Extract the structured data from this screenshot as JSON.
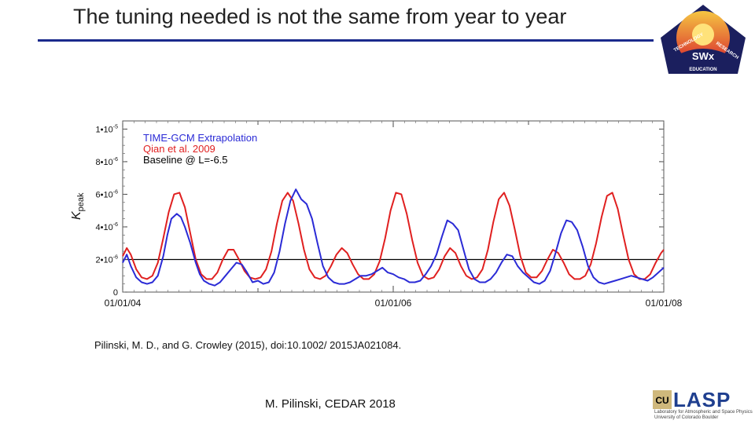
{
  "slide": {
    "title": "The tuning needed is not the same from year to year",
    "citation": "Pilinski, M. D., and G. Crowley (2015), doi:10.1002/ 2015JA021084.",
    "footer": "M. Pilinski, CEDAR 2018"
  },
  "badge": {
    "center_text": "SWx",
    "ring_words": [
      "TECHNOLOGY",
      "RESEARCH",
      "EDUCATION"
    ],
    "colors": {
      "ring": "#1b1f5e",
      "sun": "#f5a623",
      "sky": "#d8262d"
    }
  },
  "logos": {
    "lasp_text": "LASP",
    "lasp_sub": "Laboratory for Atmospheric and Space Physics University of Colorado Boulder",
    "cu_text": "CU"
  },
  "chart_data": {
    "type": "line",
    "ylabel": "K",
    "ylabel_subscript": "peak",
    "ylim": [
      0,
      1.05e-05
    ],
    "yticks": [
      {
        "value": 0,
        "mantissa": "0",
        "exp": ""
      },
      {
        "value": 2e-06,
        "mantissa": "2•10",
        "exp": "-6"
      },
      {
        "value": 4e-06,
        "mantissa": "4•10",
        "exp": "-6"
      },
      {
        "value": 6e-06,
        "mantissa": "6•10",
        "exp": "-6"
      },
      {
        "value": 8e-06,
        "mantissa": "8•10",
        "exp": "-6"
      },
      {
        "value": 1e-05,
        "mantissa": "1•10",
        "exp": "-5"
      }
    ],
    "xlim": [
      0,
      4
    ],
    "xunit": "years since 01/01/04",
    "xticks": [
      {
        "value": 0,
        "label": "01/01/04"
      },
      {
        "value": 2,
        "label": "01/01/06"
      },
      {
        "value": 4,
        "label": "01/01/08"
      }
    ],
    "xminor": [
      1,
      3
    ],
    "baseline": {
      "value": 2e-06,
      "color": "#000000"
    },
    "legend": [
      {
        "label": "TIME-GCM Extrapolation",
        "color": "#2b2bd6"
      },
      {
        "label": "Qian et al. 2009",
        "color": "#e02020"
      },
      {
        "label": "Baseline @ L=-6.5",
        "color": "#000000"
      }
    ],
    "series": [
      {
        "name": "TIME-GCM Extrapolation",
        "color": "#2b2bd6",
        "x": [
          0,
          0.03,
          0.06,
          0.1,
          0.14,
          0.18,
          0.22,
          0.26,
          0.3,
          0.33,
          0.36,
          0.4,
          0.43,
          0.46,
          0.5,
          0.54,
          0.57,
          0.6,
          0.64,
          0.68,
          0.72,
          0.76,
          0.8,
          0.84,
          0.88,
          0.92,
          0.96,
          1.0,
          1.04,
          1.08,
          1.12,
          1.16,
          1.2,
          1.24,
          1.28,
          1.32,
          1.36,
          1.4,
          1.44,
          1.48,
          1.52,
          1.56,
          1.6,
          1.64,
          1.68,
          1.72,
          1.76,
          1.8,
          1.84,
          1.88,
          1.92,
          1.96,
          2.0,
          2.04,
          2.08,
          2.12,
          2.16,
          2.2,
          2.24,
          2.28,
          2.32,
          2.36,
          2.4,
          2.44,
          2.48,
          2.52,
          2.56,
          2.6,
          2.64,
          2.68,
          2.72,
          2.76,
          2.8,
          2.84,
          2.88,
          2.92,
          2.96,
          3.0,
          3.04,
          3.08,
          3.12,
          3.16,
          3.2,
          3.24,
          3.28,
          3.32,
          3.36,
          3.4,
          3.44,
          3.48,
          3.52,
          3.56,
          3.6,
          3.64,
          3.68,
          3.72,
          3.76,
          3.8,
          3.84,
          3.88,
          3.92,
          3.96,
          4.0
        ],
        "values": [
          1.8e-06,
          2.3e-06,
          1.6e-06,
          9e-07,
          6e-07,
          5e-07,
          6e-07,
          1e-06,
          2.2e-06,
          3.5e-06,
          4.5e-06,
          4.8e-06,
          4.6e-06,
          4e-06,
          3e-06,
          1.8e-06,
          1.1e-06,
          7e-07,
          5e-07,
          4e-07,
          6e-07,
          1e-06,
          1.4e-06,
          1.8e-06,
          1.7e-06,
          1.2e-06,
          6e-07,
          7e-07,
          5e-07,
          6e-07,
          1.2e-06,
          2.5e-06,
          4.2e-06,
          5.6e-06,
          6.3e-06,
          5.7e-06,
          5.4e-06,
          4.5e-06,
          3e-06,
          1.6e-06,
          9e-07,
          6e-07,
          5e-07,
          5e-07,
          6e-07,
          8e-07,
          1e-06,
          1e-06,
          1.1e-06,
          1.3e-06,
          1.5e-06,
          1.2e-06,
          1.1e-06,
          9e-07,
          8e-07,
          6e-07,
          6e-07,
          7e-07,
          1.1e-06,
          1.6e-06,
          2.3e-06,
          3.4e-06,
          4.4e-06,
          4.2e-06,
          3.8e-06,
          2.6e-06,
          1.4e-06,
          8e-07,
          6e-07,
          6e-07,
          8e-07,
          1.2e-06,
          1.8e-06,
          2.3e-06,
          2.2e-06,
          1.6e-06,
          1.2e-06,
          9e-07,
          6e-07,
          5e-07,
          7e-07,
          1.3e-06,
          2.4e-06,
          3.6e-06,
          4.4e-06,
          4.3e-06,
          3.8e-06,
          2.8e-06,
          1.6e-06,
          9e-07,
          6e-07,
          5e-07,
          6e-07,
          7e-07,
          8e-07,
          9e-07,
          1e-06,
          9e-07,
          8e-07,
          7e-07,
          9e-07,
          1.2e-06,
          1.5e-06
        ]
      },
      {
        "name": "Qian et al. 2009",
        "color": "#e02020",
        "x": [
          0,
          0.03,
          0.06,
          0.1,
          0.14,
          0.18,
          0.22,
          0.26,
          0.3,
          0.34,
          0.38,
          0.42,
          0.46,
          0.5,
          0.54,
          0.58,
          0.62,
          0.66,
          0.7,
          0.74,
          0.78,
          0.82,
          0.86,
          0.9,
          0.94,
          0.98,
          1.02,
          1.06,
          1.1,
          1.14,
          1.18,
          1.22,
          1.26,
          1.3,
          1.34,
          1.38,
          1.42,
          1.46,
          1.5,
          1.54,
          1.58,
          1.62,
          1.66,
          1.7,
          1.74,
          1.78,
          1.82,
          1.86,
          1.9,
          1.94,
          1.98,
          2.02,
          2.06,
          2.1,
          2.14,
          2.18,
          2.22,
          2.26,
          2.3,
          2.34,
          2.38,
          2.42,
          2.46,
          2.5,
          2.54,
          2.58,
          2.62,
          2.66,
          2.7,
          2.74,
          2.78,
          2.82,
          2.86,
          2.9,
          2.94,
          2.98,
          3.02,
          3.06,
          3.1,
          3.14,
          3.18,
          3.22,
          3.26,
          3.3,
          3.34,
          3.38,
          3.42,
          3.46,
          3.5,
          3.54,
          3.58,
          3.62,
          3.66,
          3.7,
          3.74,
          3.78,
          3.82,
          3.86,
          3.9,
          3.94,
          3.98,
          4.0
        ],
        "values": [
          2.2e-06,
          2.7e-06,
          2.3e-06,
          1.4e-06,
          9e-07,
          8e-07,
          1e-06,
          1.8e-06,
          3.3e-06,
          4.9e-06,
          6e-06,
          6.1e-06,
          5.2e-06,
          3.6e-06,
          2e-06,
          1.1e-06,
          8e-07,
          8e-07,
          1.2e-06,
          2e-06,
          2.6e-06,
          2.6e-06,
          2e-06,
          1.3e-06,
          9e-07,
          8e-07,
          9e-07,
          1.4e-06,
          2.5e-06,
          4.2e-06,
          5.6e-06,
          6.1e-06,
          5.6e-06,
          4.2e-06,
          2.6e-06,
          1.4e-06,
          9e-07,
          8e-07,
          1e-06,
          1.6e-06,
          2.3e-06,
          2.7e-06,
          2.4e-06,
          1.7e-06,
          1.1e-06,
          8e-07,
          8e-07,
          1.1e-06,
          1.9e-06,
          3.3e-06,
          5e-06,
          6.1e-06,
          6e-06,
          4.8e-06,
          3.2e-06,
          1.8e-06,
          1e-06,
          8e-07,
          9e-07,
          1.4e-06,
          2.2e-06,
          2.7e-06,
          2.4e-06,
          1.6e-06,
          1e-06,
          8e-07,
          9e-07,
          1.4e-06,
          2.6e-06,
          4.3e-06,
          5.7e-06,
          6.1e-06,
          5.3e-06,
          3.8e-06,
          2.2e-06,
          1.2e-06,
          9e-07,
          9e-07,
          1.3e-06,
          2e-06,
          2.6e-06,
          2.4e-06,
          1.8e-06,
          1.1e-06,
          8e-07,
          8e-07,
          1e-06,
          1.7e-06,
          3e-06,
          4.6e-06,
          5.9e-06,
          6.1e-06,
          5.1e-06,
          3.5e-06,
          2e-06,
          1.1e-06,
          8e-07,
          8e-07,
          1.1e-06,
          1.8e-06,
          2.4e-06,
          2.6e-06
        ]
      }
    ]
  }
}
